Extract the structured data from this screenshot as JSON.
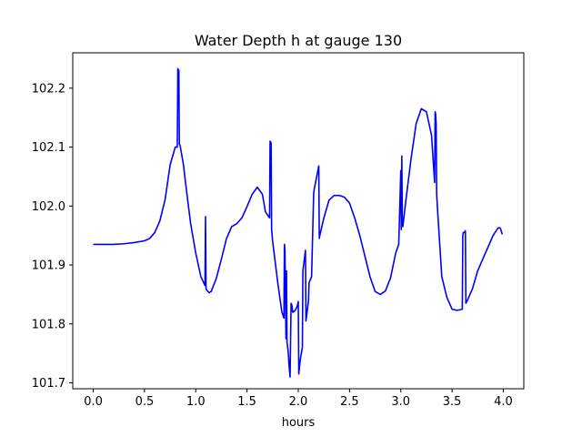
{
  "chart_data": {
    "type": "line",
    "title": "Water Depth h at gauge 130",
    "xlabel": "hours",
    "ylabel": "",
    "xlim": [
      -0.2,
      4.2
    ],
    "ylim": [
      101.69,
      102.26
    ],
    "grid": false,
    "xticks": [
      0.0,
      0.5,
      1.0,
      1.5,
      2.0,
      2.5,
      3.0,
      3.5,
      4.0
    ],
    "xtick_labels": [
      "0.0",
      "0.5",
      "1.0",
      "1.5",
      "2.0",
      "2.5",
      "3.0",
      "3.5",
      "4.0"
    ],
    "yticks": [
      101.7,
      101.8,
      101.9,
      102.0,
      102.1,
      102.2
    ],
    "ytick_labels": [
      "101.7",
      "101.8",
      "101.9",
      "102.0",
      "102.1",
      "102.2"
    ],
    "series": [
      {
        "color": "#0000ff",
        "x": [
          0.0,
          0.1,
          0.2,
          0.3,
          0.4,
          0.5,
          0.55,
          0.6,
          0.65,
          0.7,
          0.75,
          0.8,
          0.82,
          0.825,
          0.835,
          0.84,
          0.845,
          0.85,
          0.88,
          0.9,
          0.95,
          1.0,
          1.05,
          1.09,
          1.095,
          1.1,
          1.105,
          1.13,
          1.15,
          1.2,
          1.25,
          1.3,
          1.35,
          1.4,
          1.45,
          1.5,
          1.55,
          1.6,
          1.65,
          1.68,
          1.72,
          1.725,
          1.735,
          1.74,
          1.75,
          1.8,
          1.84,
          1.86,
          1.865,
          1.87,
          1.88,
          1.885,
          1.89,
          1.9,
          1.905,
          1.91,
          1.92,
          1.93,
          1.94,
          1.945,
          1.95,
          1.97,
          1.99,
          2.0,
          2.005,
          2.02,
          2.04,
          2.045,
          2.07,
          2.075,
          2.1,
          2.105,
          2.13,
          2.15,
          2.155,
          2.2,
          2.205,
          2.21,
          2.25,
          2.3,
          2.35,
          2.4,
          2.45,
          2.5,
          2.55,
          2.6,
          2.65,
          2.7,
          2.75,
          2.8,
          2.85,
          2.9,
          2.95,
          2.98,
          3.0,
          3.005,
          3.01,
          3.015,
          3.02,
          3.05,
          3.1,
          3.15,
          3.2,
          3.25,
          3.3,
          3.33,
          3.335,
          3.34,
          3.345,
          3.35,
          3.36,
          3.4,
          3.45,
          3.5,
          3.55,
          3.6,
          3.605,
          3.61,
          3.62,
          3.63,
          3.635,
          3.65,
          3.7,
          3.75,
          3.8,
          3.85,
          3.9,
          3.95,
          3.97,
          3.99
        ],
        "y": [
          101.935,
          101.935,
          101.935,
          101.936,
          101.938,
          101.941,
          101.945,
          101.955,
          101.975,
          102.01,
          102.07,
          102.1,
          102.1,
          102.233,
          102.23,
          102.105,
          102.104,
          102.1,
          102.07,
          102.04,
          101.97,
          101.92,
          101.88,
          101.865,
          101.982,
          101.86,
          101.858,
          101.853,
          101.855,
          101.877,
          101.91,
          101.945,
          101.965,
          101.97,
          101.98,
          101.999,
          102.02,
          102.032,
          102.02,
          101.99,
          101.98,
          102.11,
          102.107,
          101.96,
          101.94,
          101.87,
          101.82,
          101.81,
          101.935,
          101.925,
          101.775,
          101.89,
          101.77,
          101.755,
          101.745,
          101.73,
          101.71,
          101.835,
          101.83,
          101.82,
          101.82,
          101.823,
          101.83,
          101.838,
          101.715,
          101.74,
          101.76,
          101.89,
          101.925,
          101.805,
          101.84,
          101.87,
          101.88,
          102.02,
          102.028,
          102.068,
          101.945,
          101.95,
          101.98,
          102.01,
          102.018,
          102.018,
          102.015,
          102.005,
          101.98,
          101.95,
          101.915,
          101.88,
          101.855,
          101.85,
          101.856,
          101.878,
          101.92,
          101.935,
          102.06,
          101.96,
          102.085,
          101.97,
          101.965,
          102.01,
          102.08,
          102.14,
          102.165,
          102.16,
          102.12,
          102.04,
          102.16,
          102.155,
          102.14,
          102.02,
          101.99,
          101.88,
          101.845,
          101.825,
          101.823,
          101.825,
          101.95,
          101.955,
          101.955,
          101.958,
          101.835,
          101.84,
          101.86,
          101.89,
          101.91,
          101.93,
          101.95,
          101.963,
          101.963,
          101.952
        ]
      }
    ]
  }
}
